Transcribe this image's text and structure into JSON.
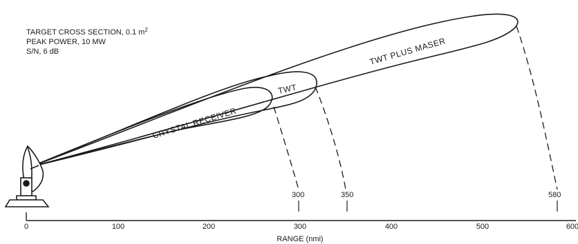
{
  "parameters": {
    "cross_section_prefix": "TARGET CROSS SECTION, 0.1 m",
    "cross_section_exponent": "2",
    "peak_power": "PEAK POWER, 10 MW",
    "signal_to_noise": "S/N, 6 dB"
  },
  "lobes": [
    {
      "label": "CRYSTAL RECEIVER",
      "range_nmi": 270
    },
    {
      "label": "TWT",
      "range_nmi": 300
    },
    {
      "label": "TWT PLUS MASER",
      "range_nmi": 580
    }
  ],
  "range_markers": [
    {
      "label": "300",
      "value": 300
    },
    {
      "label": "350",
      "value": 350
    },
    {
      "label": "580",
      "value": 580
    }
  ],
  "axis": {
    "title": "RANGE (nmi)",
    "min": 0,
    "max": 600,
    "ticks": [
      "0",
      "100",
      "200",
      "300",
      "400",
      "500",
      "600"
    ]
  },
  "colors": {
    "ink": "#1a1a1a",
    "background": "#ffffff"
  },
  "icons": {
    "antenna": "radar-antenna-icon"
  }
}
